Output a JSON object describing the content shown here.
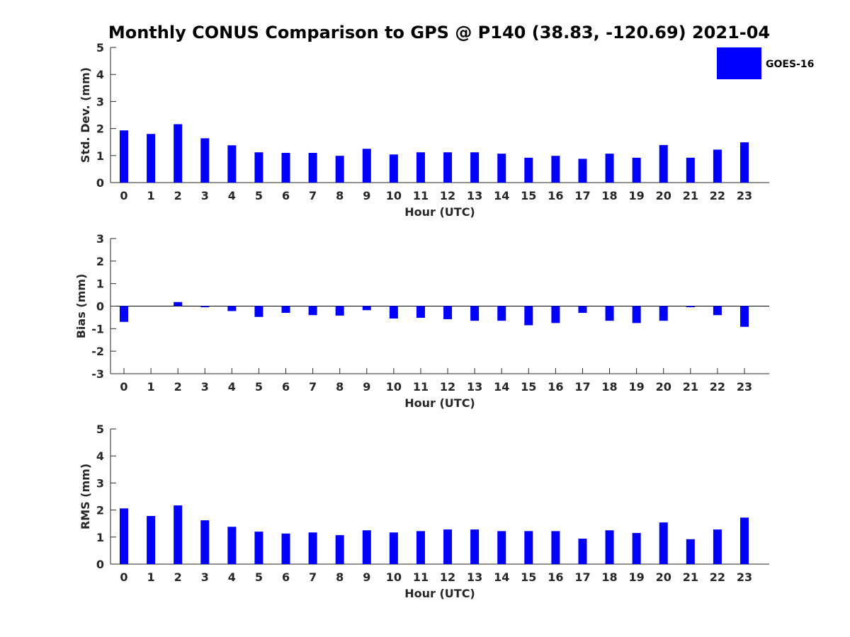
{
  "title": "Monthly CONUS Comparison to GPS @ P140 (38.83, -120.69) 2021-04",
  "legend": {
    "label": "GOES-16",
    "color": "#0000ff"
  },
  "chart_data": [
    {
      "type": "bar",
      "xlabel": "Hour (UTC)",
      "ylabel": "Std. Dev. (mm)",
      "ylim": [
        0,
        5
      ],
      "yticks": [
        0,
        1,
        2,
        3,
        4,
        5
      ],
      "categories": [
        "0",
        "1",
        "2",
        "3",
        "4",
        "5",
        "6",
        "7",
        "8",
        "9",
        "10",
        "11",
        "12",
        "13",
        "14",
        "15",
        "16",
        "17",
        "18",
        "19",
        "20",
        "21",
        "22",
        "23"
      ],
      "series": [
        {
          "name": "GOES-16",
          "color": "#0000ff",
          "values": [
            1.93,
            1.8,
            2.16,
            1.64,
            1.38,
            1.12,
            1.1,
            1.1,
            0.99,
            1.25,
            1.04,
            1.12,
            1.12,
            1.12,
            1.07,
            0.92,
            0.99,
            0.88,
            1.07,
            0.92,
            1.39,
            0.92,
            1.22,
            1.49
          ]
        }
      ],
      "grid": false
    },
    {
      "type": "bar",
      "xlabel": "Hour (UTC)",
      "ylabel": "Bias (mm)",
      "ylim": [
        -3,
        3
      ],
      "yticks": [
        -3,
        -2,
        -1,
        0,
        1,
        2,
        3
      ],
      "categories": [
        "0",
        "1",
        "2",
        "3",
        "4",
        "5",
        "6",
        "7",
        "8",
        "9",
        "10",
        "11",
        "12",
        "13",
        "14",
        "15",
        "16",
        "17",
        "18",
        "19",
        "20",
        "21",
        "22",
        "23"
      ],
      "series": [
        {
          "name": "GOES-16",
          "color": "#0000ff",
          "values": [
            -0.7,
            0.0,
            0.18,
            -0.05,
            -0.22,
            -0.48,
            -0.3,
            -0.4,
            -0.42,
            -0.18,
            -0.55,
            -0.52,
            -0.58,
            -0.65,
            -0.65,
            -0.85,
            -0.75,
            -0.3,
            -0.65,
            -0.75,
            -0.65,
            -0.05,
            -0.4,
            -0.92
          ]
        }
      ],
      "grid": false
    },
    {
      "type": "bar",
      "xlabel": "Hour (UTC)",
      "ylabel": "RMS (mm)",
      "ylim": [
        0,
        5
      ],
      "yticks": [
        0,
        1,
        2,
        3,
        4,
        5
      ],
      "categories": [
        "0",
        "1",
        "2",
        "3",
        "4",
        "5",
        "6",
        "7",
        "8",
        "9",
        "10",
        "11",
        "12",
        "13",
        "14",
        "15",
        "16",
        "17",
        "18",
        "19",
        "20",
        "21",
        "22",
        "23"
      ],
      "series": [
        {
          "name": "GOES-16",
          "color": "#0000ff",
          "values": [
            2.06,
            1.78,
            2.17,
            1.62,
            1.38,
            1.2,
            1.13,
            1.17,
            1.07,
            1.25,
            1.17,
            1.22,
            1.28,
            1.28,
            1.22,
            1.22,
            1.22,
            0.94,
            1.25,
            1.15,
            1.54,
            0.92,
            1.28,
            1.72
          ]
        }
      ],
      "grid": false
    }
  ]
}
